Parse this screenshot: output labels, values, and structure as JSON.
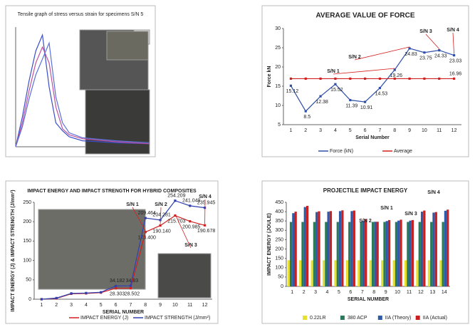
{
  "chart_data": [
    {
      "type": "line",
      "title": "Tensile graph of stress versus strain for specimens S/N 5",
      "x": [
        0,
        2,
        4,
        6,
        8,
        10,
        12,
        14,
        16,
        20,
        30,
        40
      ],
      "xlim": [
        0,
        40
      ],
      "ylim": [
        0,
        600
      ],
      "series": [
        {
          "color": "#3a4fc8",
          "values": [
            0,
            150,
            330,
            480,
            560,
            300,
            120,
            80,
            50,
            30,
            20,
            15
          ]
        },
        {
          "color": "#c050a0",
          "values": [
            0,
            120,
            280,
            420,
            500,
            420,
            200,
            90,
            60,
            40,
            25,
            15
          ]
        },
        {
          "color": "#5a70d8",
          "values": [
            0,
            100,
            240,
            360,
            440,
            520,
            250,
            120,
            70,
            45,
            30,
            20
          ]
        }
      ]
    },
    {
      "type": "line",
      "title": "AVERAGE VALUE OF FORCE",
      "x_label": "Serial Number",
      "y_label": "Force  kN",
      "categories": [
        "1",
        "2",
        "3",
        "4",
        "5",
        "6",
        "7",
        "8",
        "9",
        "10",
        "11",
        "12"
      ],
      "ylim": [
        5,
        30
      ],
      "yticks": [
        5,
        10,
        15,
        20,
        25,
        30
      ],
      "legend": "bottom",
      "annotations": [
        "S/N 1",
        "S/N 2",
        "S/N 3",
        "S/N 4"
      ],
      "series": [
        {
          "name": "Force (kN)",
          "color": "#2f4fa8",
          "values": [
            15.12,
            8.5,
            12.38,
            15.52,
            11.39,
            10.91,
            14.53,
            19.26,
            24.83,
            23.75,
            24.33,
            23.03
          ],
          "value_labels": [
            "15.12",
            "8.5",
            "12.38",
            "15.52",
            "11.39",
            "10.91",
            "14.53",
            "19.26",
            "24.83",
            "23.75",
            "24.33",
            "23.03"
          ]
        },
        {
          "name": "Average",
          "color": "#d02020",
          "values": [
            16.96,
            16.96,
            16.96,
            16.96,
            16.96,
            16.96,
            16.96,
            16.96,
            16.96,
            16.96,
            16.96,
            16.96
          ],
          "value_labels": [
            null,
            null,
            null,
            null,
            null,
            null,
            null,
            null,
            null,
            null,
            null,
            "16.96"
          ]
        }
      ]
    },
    {
      "type": "line",
      "title": "IMPACT ENERGY AND IMPACT STRENGTH FOR HYBRID COMPOSITES",
      "x_label": "SERIAL NUMBER",
      "y_label": "IMPACT ENERGY (J) & IMPACT STRENGTH (J/mm²)",
      "categories": [
        "1",
        "2",
        "3",
        "4",
        "5",
        "6",
        "7",
        "8",
        "9",
        "10",
        "11",
        "12"
      ],
      "ylim": [
        0,
        250
      ],
      "yticks": [
        0,
        50,
        100,
        150,
        200,
        250
      ],
      "legend": "bottom",
      "annotations": [
        "S/N 1",
        "S/N 2",
        "S/N 3",
        "S/N 4"
      ],
      "series": [
        {
          "name": "IMPACT ENERGY  (J)",
          "color": "#d02020",
          "values": [
            0,
            2,
            14,
            15,
            17,
            28.303,
            28.502,
            173.4,
            190.14,
            215.703,
            200.985,
            190.678
          ],
          "value_labels": [
            null,
            null,
            null,
            null,
            null,
            "28.303",
            "28.502",
            "173.400",
            "190.140",
            "215.703",
            "200.985",
            "190.678"
          ]
        },
        {
          "name": "IMPACT STRENGTH (J/mm²)",
          "color": "#3040b0",
          "values": [
            0,
            3,
            15,
            16,
            18,
            34.182,
            34.83,
            209.464,
            204.281,
            254.209,
            241.049,
            235.945
          ],
          "value_labels": [
            null,
            null,
            null,
            null,
            null,
            "34.182",
            "34.83",
            "209.464",
            "204.281",
            "254.209",
            "241.049",
            "235.945"
          ]
        }
      ]
    },
    {
      "type": "bar",
      "title": "PROJECTILE IMPACT ENERGY",
      "x_label": "SERIAL NUMBER",
      "y_label": "IMPACT ENERGY (JOULE)",
      "categories": [
        "1",
        "2",
        "3",
        "4",
        "5",
        "6",
        "7",
        "8",
        "9",
        "10",
        "11",
        "12",
        "13",
        "14"
      ],
      "ylim": [
        0,
        450
      ],
      "yticks": [
        0,
        50,
        100,
        150,
        200,
        250,
        300,
        350,
        400,
        450
      ],
      "legend": "bottom",
      "annotations": [
        "S/N 1",
        "S/N 2",
        "S/N 3",
        "S/N 4"
      ],
      "series": [
        {
          "name": "0.22LR",
          "color": "#e8e030",
          "values": [
            140,
            140,
            140,
            140,
            140,
            140,
            140,
            140,
            140,
            140,
            140,
            140,
            140,
            140
          ]
        },
        {
          "name": "380 ACP",
          "color": "#2a7a5a",
          "values": [
            345,
            345,
            345,
            345,
            345,
            345,
            345,
            345,
            345,
            345,
            345,
            345,
            345,
            345
          ]
        },
        {
          "name": "IIA (Theory)",
          "color": "#2e5aa8",
          "values": [
            392,
            425,
            398,
            400,
            403,
            403,
            350,
            346,
            350,
            352,
            352,
            400,
            395,
            405
          ]
        },
        {
          "name": "IIA (Actual)",
          "color": "#c82020",
          "values": [
            400,
            431,
            402,
            403,
            407,
            406,
            360,
            346,
            355,
            357,
            355,
            406,
            398,
            411
          ]
        }
      ]
    }
  ]
}
